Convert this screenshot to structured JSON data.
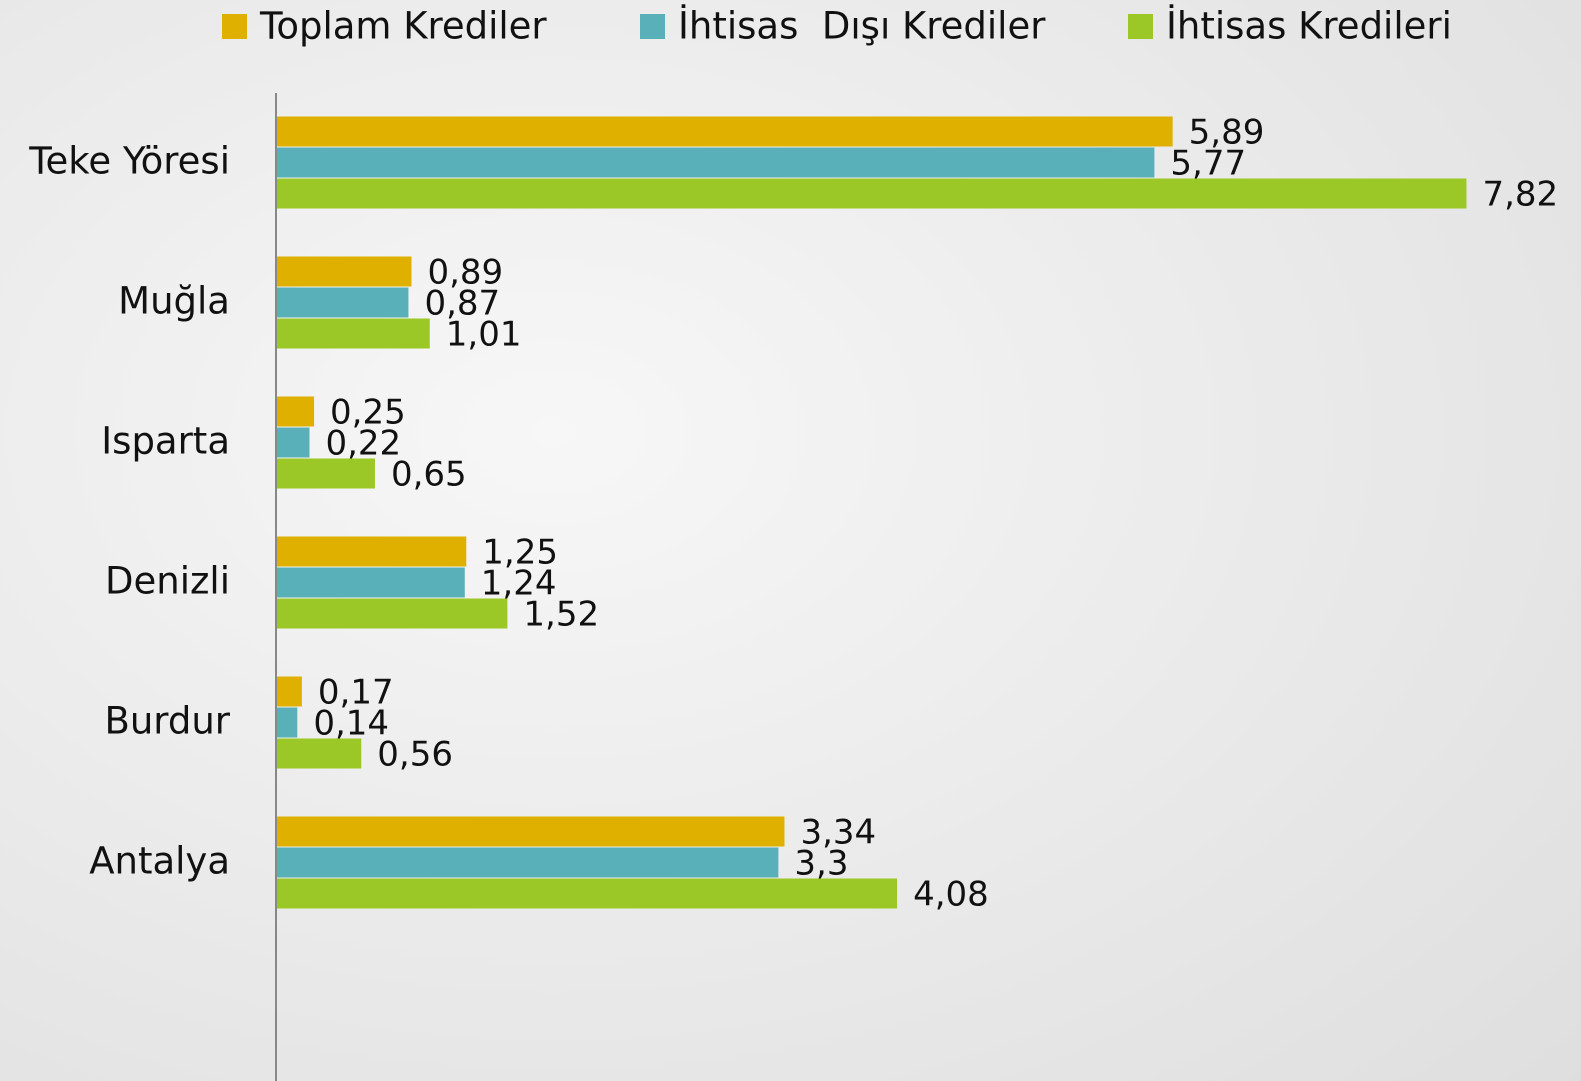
{
  "chart_data": {
    "type": "hbar",
    "categories": [
      "Teke Yöresi",
      "Muğla",
      "Isparta",
      "Denizli",
      "Burdur",
      "Antalya"
    ],
    "series": [
      {
        "name": "Toplam Krediler",
        "color": "#e0b000",
        "values": [
          5.89,
          0.89,
          0.25,
          1.25,
          0.17,
          3.34
        ],
        "value_labels": [
          "5,89",
          "0,89",
          "0,25",
          "1,25",
          "0,17",
          "3,34"
        ]
      },
      {
        "name": "İhtisas  Dışı Krediler",
        "color": "#5ab0b8",
        "values": [
          5.77,
          0.87,
          0.22,
          1.24,
          0.14,
          3.3
        ],
        "value_labels": [
          "5,77",
          "0,87",
          "0,22",
          "1,24",
          "0,14",
          "3,3"
        ]
      },
      {
        "name": "İhtisas Kredileri",
        "color": "#9bc826",
        "values": [
          7.82,
          1.01,
          0.65,
          1.52,
          0.56,
          4.08
        ],
        "value_labels": [
          "7,82",
          "1,01",
          "0,65",
          "1,52",
          "0,56",
          "4,08"
        ]
      }
    ],
    "xlim": [
      0,
      8.5
    ],
    "legend": "top"
  }
}
